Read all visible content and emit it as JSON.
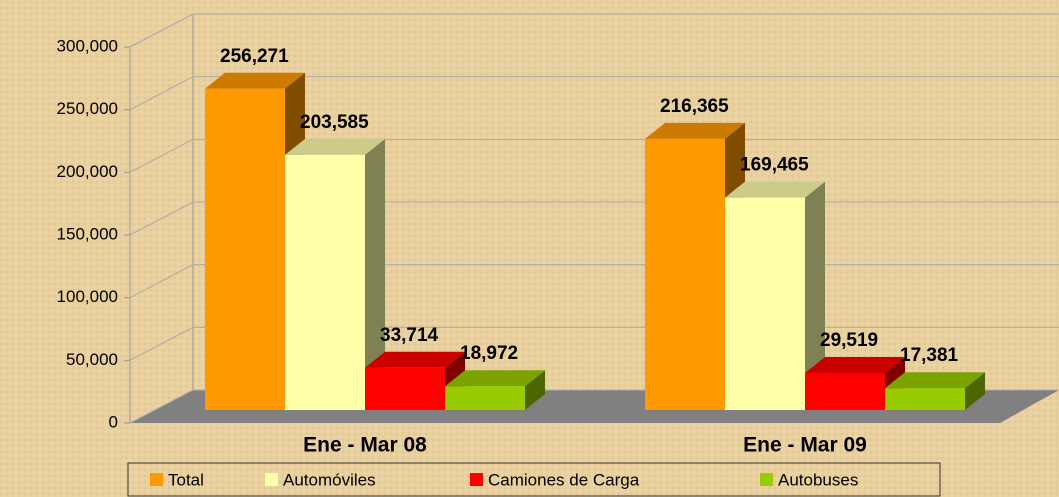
{
  "chart_data": {
    "type": "bar3d",
    "categories": [
      "Ene - Mar 08",
      "Ene - Mar 09"
    ],
    "series": [
      {
        "name": "Total",
        "color": "#ff9900",
        "values": [
          256271,
          216365
        ],
        "value_labels": [
          "256,271",
          "216,365"
        ]
      },
      {
        "name": "Automóviles",
        "color": "#ffffaa",
        "values": [
          203585,
          169465
        ],
        "value_labels": [
          "203,585",
          "169,465"
        ]
      },
      {
        "name": "Camiones de Carga",
        "color": "#ff0000",
        "values": [
          33714,
          29519
        ],
        "value_labels": [
          "33,714",
          "29,519"
        ]
      },
      {
        "name": "Autobuses",
        "color": "#99cc00",
        "values": [
          18972,
          17381
        ],
        "value_labels": [
          "18,972",
          "17,381"
        ]
      }
    ],
    "ylim": [
      0,
      300000
    ],
    "yticks": [
      0,
      {
        "value": 50000,
        "label": "50,000"
      },
      {
        "value": 100000,
        "label": "100,000"
      },
      {
        "value": 150000,
        "label": "150,000"
      },
      {
        "value": 200000,
        "label": "200,000"
      },
      {
        "value": 250000,
        "label": "250,000"
      },
      {
        "value": 300000,
        "label": "300,000"
      }
    ],
    "grid": true,
    "legend": "bottom"
  }
}
